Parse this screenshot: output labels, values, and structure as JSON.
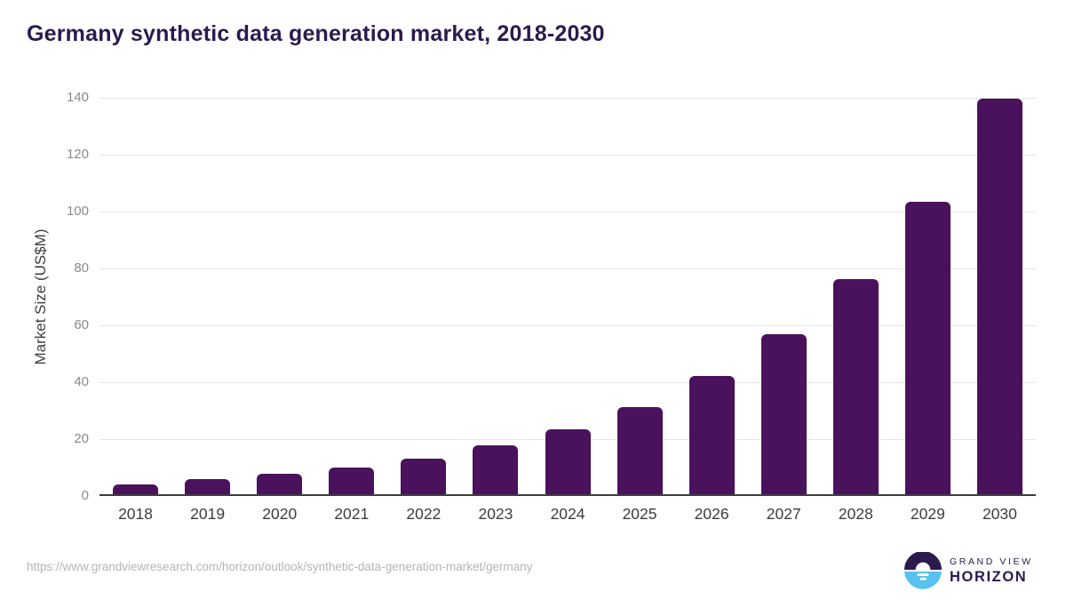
{
  "page": {
    "title": "Germany synthetic data generation market, 2018-2030",
    "source_url": "https://www.grandviewresearch.com/horizon/outlook/synthetic-data-generation-market/germany"
  },
  "chart_data": {
    "type": "bar",
    "title": "Germany synthetic data generation market, 2018-2030",
    "categories": [
      "2018",
      "2019",
      "2020",
      "2021",
      "2022",
      "2023",
      "2024",
      "2025",
      "2026",
      "2027",
      "2028",
      "2029",
      "2030"
    ],
    "values": [
      4.2,
      5.9,
      7.8,
      10.0,
      13.2,
      17.7,
      23.5,
      31.3,
      42.3,
      56.9,
      76.3,
      103.3,
      139.6
    ],
    "xlabel": "",
    "ylabel": "Market Size (US$M)",
    "ylim": [
      0,
      140
    ],
    "yticks": [
      0,
      20,
      40,
      60,
      80,
      100,
      120,
      140
    ],
    "grid": "horizontal",
    "legend": "none",
    "bar_color": "#4a115c"
  },
  "branding": {
    "name_line1": "GRAND VIEW",
    "name_line2": "HORIZON",
    "logo_top_color": "#2b1a4e",
    "logo_bottom_color": "#57c2ef"
  },
  "colors": {
    "title": "#2b1a4e",
    "bar": "#4a115c",
    "gridline": "#e6e6e6",
    "axis_line": "#3d3d3d",
    "y_tick_text": "#8a8a8a",
    "x_tick_text": "#3d3d3d",
    "source_text": "#b5b5b5",
    "background": "#ffffff"
  }
}
